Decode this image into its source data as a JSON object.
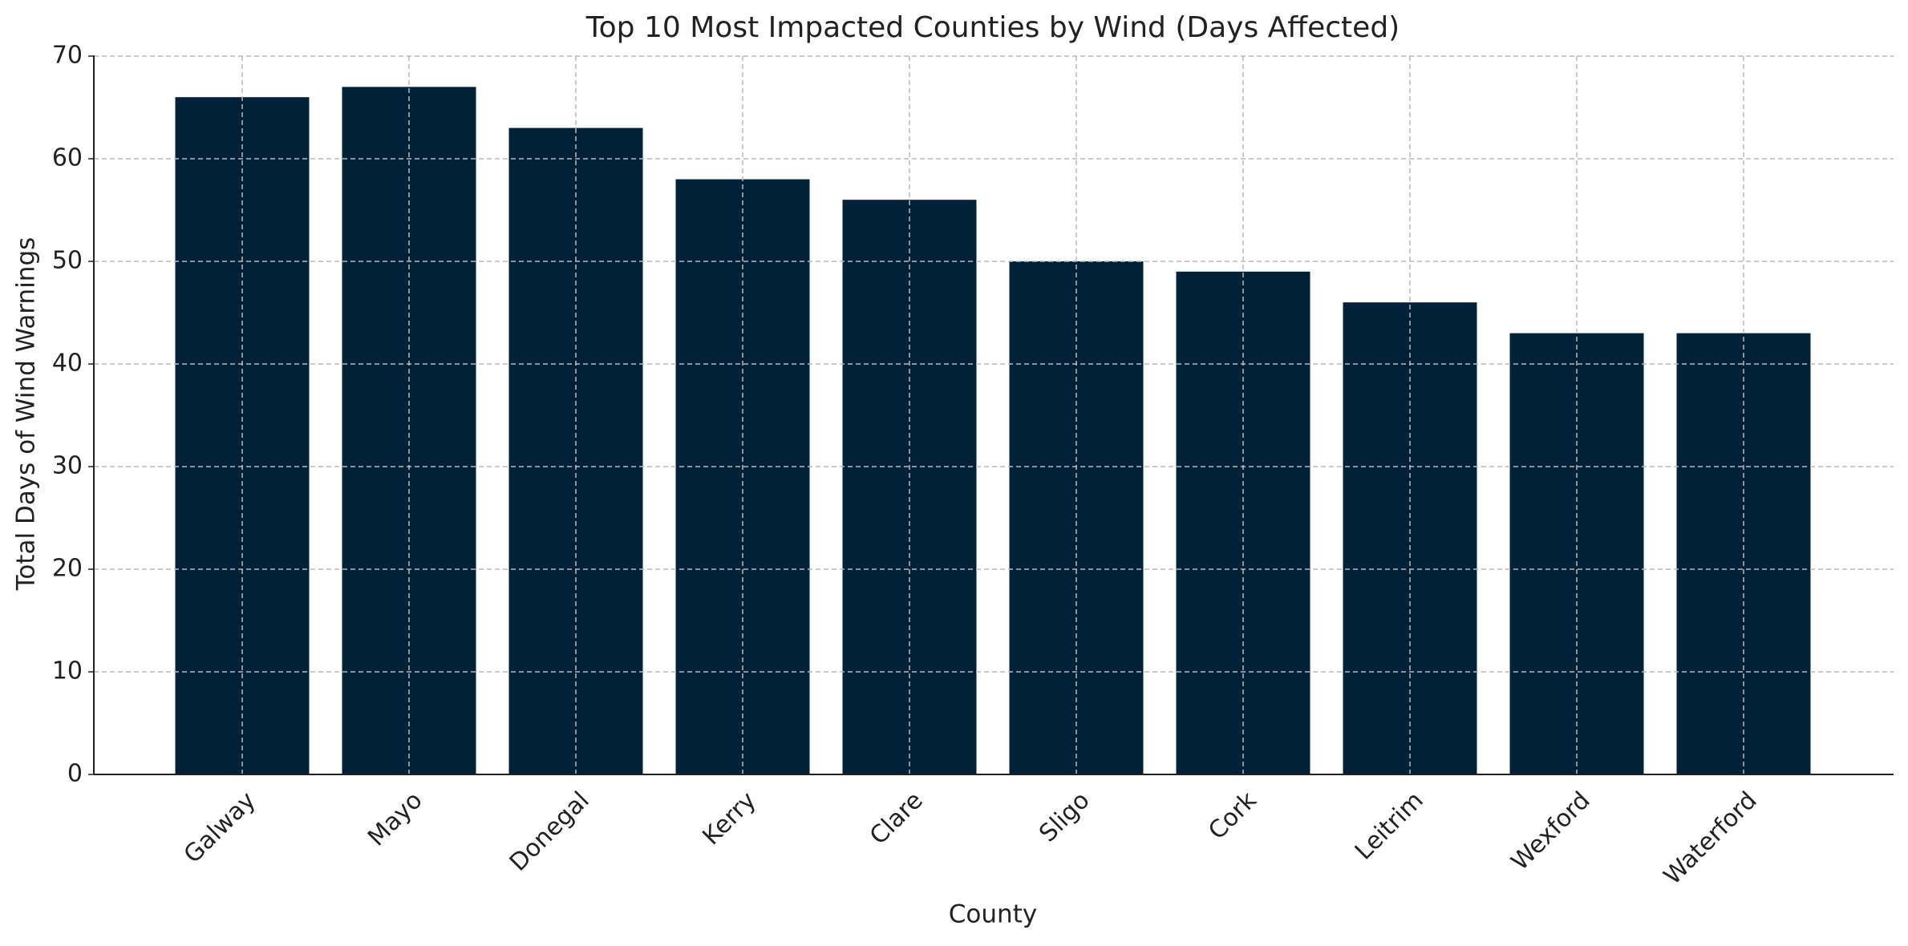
{
  "chart_data": {
    "type": "bar",
    "title": "Top 10 Most Impacted Counties by Wind (Days Affected)",
    "x_label": "County",
    "y_label": "Total Days of Wind Warnings",
    "categories": [
      "Galway",
      "Mayo",
      "Donegal",
      "Kerry",
      "Clare",
      "Sligo",
      "Cork",
      "Leitrim",
      "Wexford",
      "Waterford"
    ],
    "values": [
      66,
      67,
      63,
      58,
      56,
      50,
      49,
      46,
      43,
      43
    ],
    "color": "#012139",
    "ylim": [
      0,
      70
    ],
    "yticks": [
      0,
      10,
      20,
      30,
      40,
      50,
      60,
      70
    ],
    "grid": true
  }
}
